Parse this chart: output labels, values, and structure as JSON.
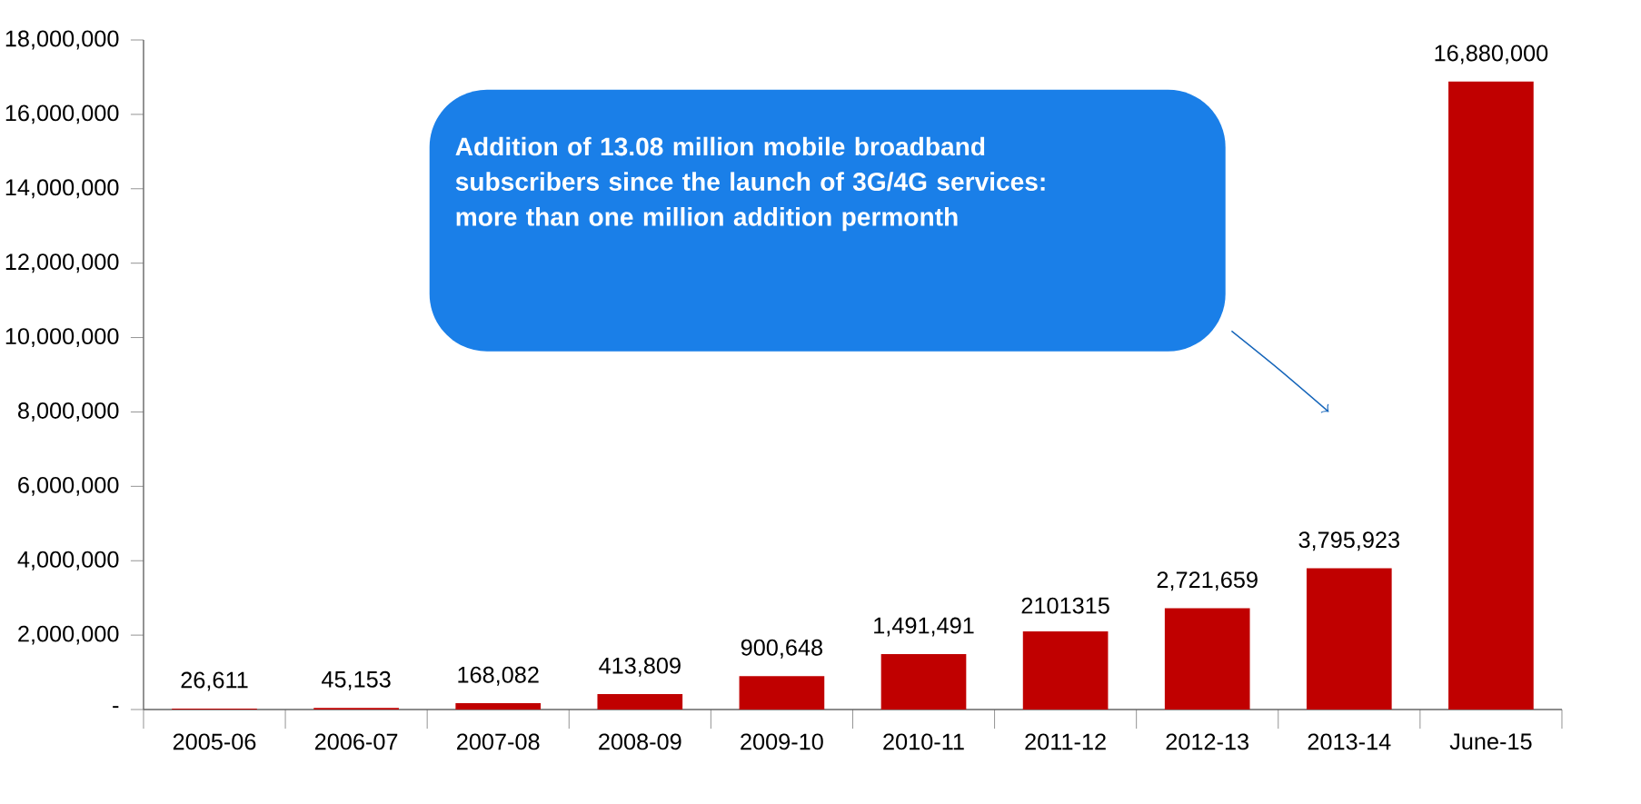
{
  "chart_data": {
    "type": "bar",
    "categories": [
      "2005-06",
      "2006-07",
      "2007-08",
      "2008-09",
      "2009-10",
      "2010-11",
      "2011-12",
      "2012-13",
      "2013-14",
      "June-15"
    ],
    "values": [
      26611,
      45153,
      168082,
      413809,
      900648,
      1491491,
      2101315,
      2721659,
      3795923,
      16880000
    ],
    "value_labels": [
      "26,611",
      "45,153",
      "168,082",
      "413,809",
      "900,648",
      "1,491,491",
      "2101315",
      "2,721,659",
      "3,795,923",
      "16,880,000"
    ],
    "color": "#c00000",
    "ylim": [
      0,
      18000000
    ],
    "yticks": [
      {
        "value": 0,
        "label": "-"
      },
      {
        "value": 2000000,
        "label": "2,000,000"
      },
      {
        "value": 4000000,
        "label": "4,000,000"
      },
      {
        "value": 6000000,
        "label": "6,000,000"
      },
      {
        "value": 8000000,
        "label": "8,000,000"
      },
      {
        "value": 10000000,
        "label": "10,000,000"
      },
      {
        "value": 12000000,
        "label": "12,000,000"
      },
      {
        "value": 14000000,
        "label": "14,000,000"
      },
      {
        "value": 16000000,
        "label": "16,000,000"
      },
      {
        "value": 18000000,
        "label": "18,000,000"
      }
    ],
    "annotations": [
      "Addition of **13.08 million** mobile broadband subscribers since the launch of 3G/4G services: more than one million addition permonth"
    ]
  }
}
